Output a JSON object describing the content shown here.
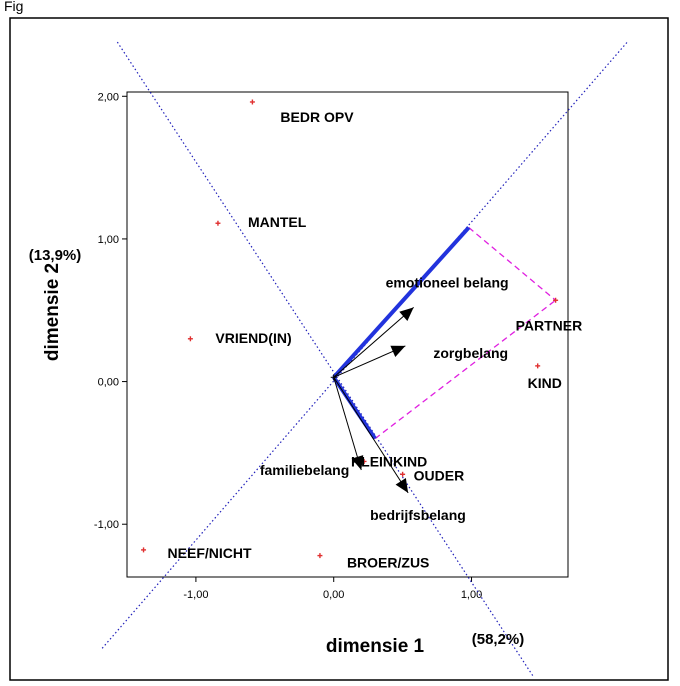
{
  "figure_label": "Fig",
  "chart_data": {
    "type": "scatter",
    "title": "",
    "xlabel": "dimensie 1",
    "ylabel": "dimensie 2",
    "x_explained": "(58,2%)",
    "y_explained": "(13,9%)",
    "xlim": [
      -1.5,
      1.7
    ],
    "ylim": [
      -1.37,
      2.03
    ],
    "x_ticks": [
      {
        "value": -1,
        "label": "-1,00"
      },
      {
        "value": 0,
        "label": "0,00"
      },
      {
        "value": 1,
        "label": "1,00"
      }
    ],
    "y_ticks": [
      {
        "value": -1,
        "label": "-1,00"
      },
      {
        "value": 0,
        "label": "0,00"
      },
      {
        "value": 1,
        "label": "1,00"
      },
      {
        "value": 2,
        "label": "2,00"
      }
    ],
    "grid": false,
    "colors": {
      "points": "#e03030",
      "dotted_axes": "#2222bb",
      "projection": "#2233dd",
      "dashed": "#e020e0",
      "vectors": "#000000"
    },
    "points": [
      {
        "label": "BEDR OPV",
        "x": -0.59,
        "y": 1.96
      },
      {
        "label": "MANTEL",
        "x": -0.84,
        "y": 1.11
      },
      {
        "label": "VRIEND(IN)",
        "x": -1.04,
        "y": 0.3
      },
      {
        "label": "PARTNER",
        "x": 1.61,
        "y": 0.57
      },
      {
        "label": "KIND",
        "x": 1.48,
        "y": 0.11
      },
      {
        "label": "KLEINKIND",
        "x": 0.22,
        "y": -0.56
      },
      {
        "label": "OUDER",
        "x": 0.5,
        "y": -0.65
      },
      {
        "label": "NEEF/NICHT",
        "x": -1.38,
        "y": -1.18
      },
      {
        "label": "BROER/ZUS",
        "x": -0.1,
        "y": -1.22
      }
    ],
    "vectors": [
      {
        "label": "emotioneel belang",
        "x": 0.58,
        "y": 0.52
      },
      {
        "label": "zorgbelang",
        "x": 0.52,
        "y": 0.25
      },
      {
        "label": "familiebelang",
        "x": 0.2,
        "y": -0.62
      },
      {
        "label": "bedrijfsbelang",
        "x": 0.54,
        "y": -0.78
      }
    ],
    "projection_lines": [
      {
        "x1": 0.0,
        "y1": 0.03,
        "x2": 0.98,
        "y2": 1.08
      },
      {
        "x1": 0.0,
        "y1": 0.03,
        "x2": 0.3,
        "y2": -0.4
      }
    ],
    "dashed_lines": [
      {
        "x1": 0.98,
        "y1": 1.08,
        "x2": 1.61,
        "y2": 0.57
      },
      {
        "x1": 0.3,
        "y1": -0.4,
        "x2": 1.61,
        "y2": 0.57
      }
    ],
    "dotted_axes": [
      {
        "x1": -1.57,
        "y1": 2.38,
        "x2": 1.45,
        "y2": -2.07
      },
      {
        "x1": -1.68,
        "y1": -1.87,
        "x2": 2.13,
        "y2": 2.38
      }
    ]
  }
}
